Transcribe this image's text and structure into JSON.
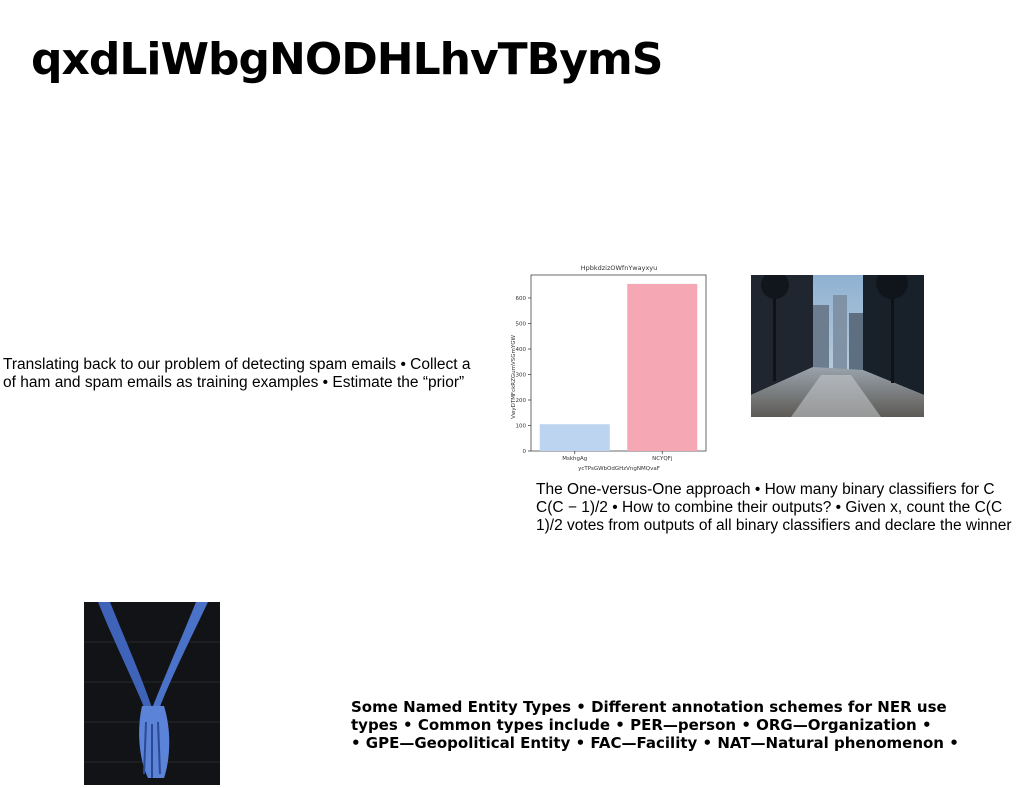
{
  "slide": {
    "title": "qxdLiWbgNODHLhvTBymS"
  },
  "text_blocks": [
    {
      "lines": [
        "Translating back to our problem of detecting spam emails • Collect a",
        "of ham and spam emails as training examples • Estimate the “prior”"
      ]
    },
    {
      "lines": [
        "The One-versus-One approach • How many binary classifiers for C",
        "C(C − 1)/2 • How to combine their outputs? • Given x, count the C(C",
        "1)/2 votes from outputs of all binary classifiers and declare the winner"
      ]
    },
    {
      "lines": [
        "Some Named Entity Types • Different annotation schemes for NER use",
        "types • Common types include • PER—person • ORG—Organization •",
        "• GPE—Geopolitical Entity • FAC—Facility • NAT—Natural phenomenon •"
      ]
    }
  ],
  "images": {
    "street": "street-photo",
    "hands": "hands-photo"
  },
  "chart_data": {
    "type": "bar",
    "title": "HpbkdzizOWfnYwayxyu",
    "xlabel": "ycTPsGWbOdGHzVngNMQvaF",
    "ylabel": "VwyDTMFckRZGumVSGmYGW",
    "categories": [
      "MskhgAg",
      "NCYQFj"
    ],
    "values": [
      105,
      655
    ],
    "colors": [
      "#bcd4f0",
      "#f5a7b4"
    ],
    "ylim": [
      0,
      690
    ],
    "yticks": [
      0,
      100,
      200,
      300,
      400,
      500,
      600
    ],
    "grid": false
  }
}
